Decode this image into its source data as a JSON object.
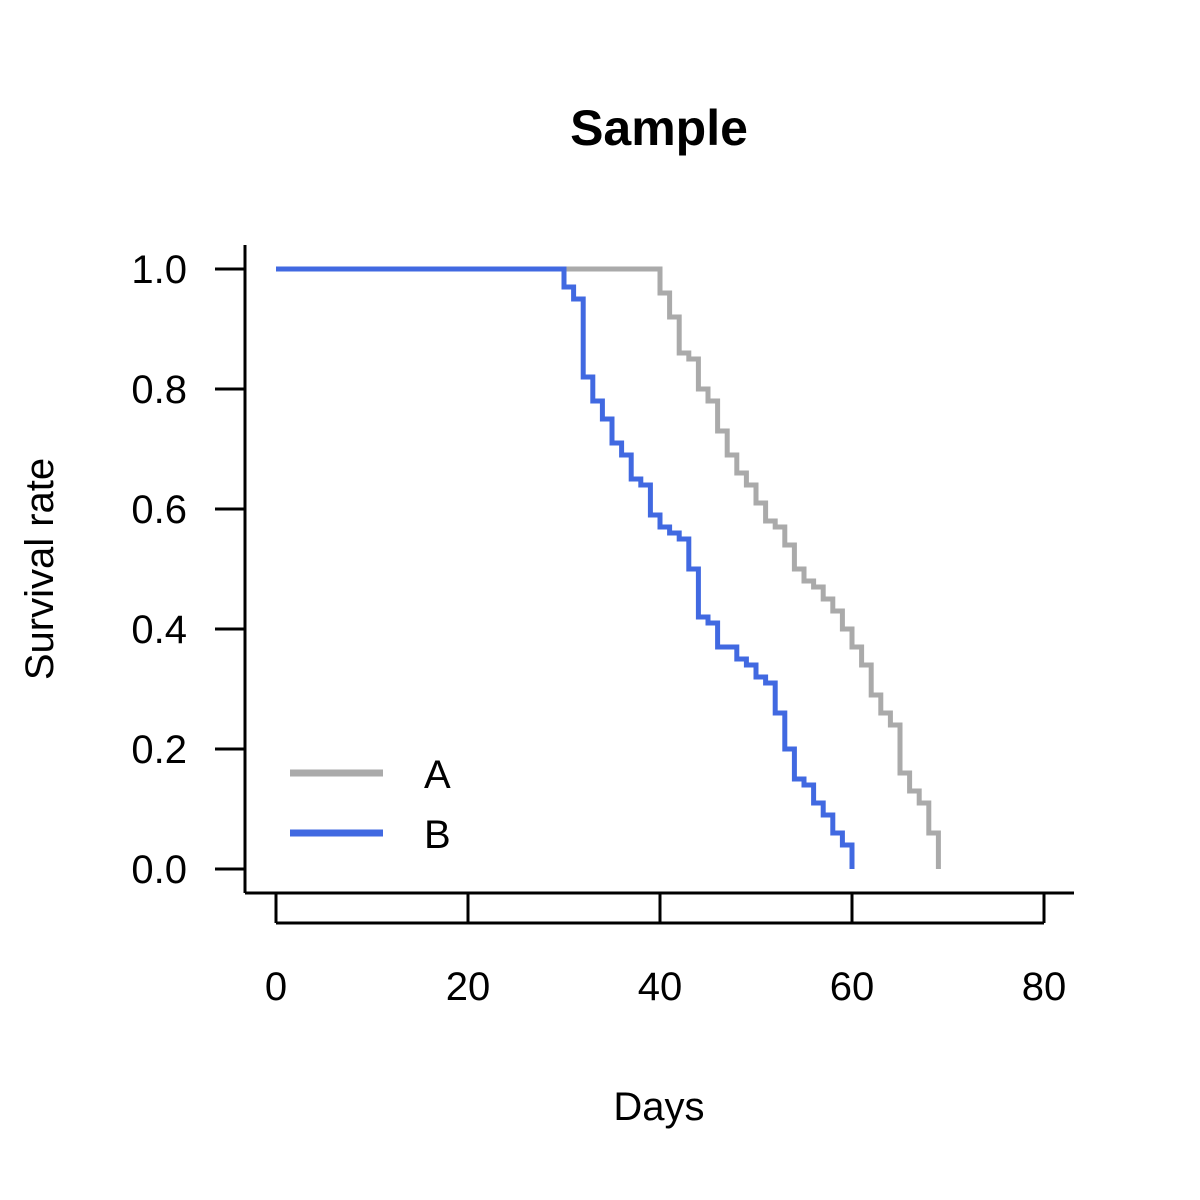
{
  "chart_data": {
    "type": "line",
    "title": "Sample",
    "xlabel": "Days",
    "ylabel": "Survival rate",
    "xlim": [
      0,
      80
    ],
    "ylim": [
      0,
      1
    ],
    "x_ticks": [
      0,
      20,
      40,
      60,
      80
    ],
    "y_ticks": [
      0.0,
      0.2,
      0.4,
      0.6,
      0.8,
      1.0
    ],
    "x_tick_labels": [
      "0",
      "20",
      "40",
      "60",
      "80"
    ],
    "y_tick_labels": [
      "0.0",
      "0.2",
      "0.4",
      "0.6",
      "0.8",
      "1.0"
    ],
    "grid": false,
    "legend_position": "bottom-left",
    "step": true,
    "series": [
      {
        "name": "A",
        "color": "#aaaaaa",
        "points": [
          [
            0,
            1.0
          ],
          [
            40,
            0.96
          ],
          [
            41,
            0.92
          ],
          [
            42,
            0.86
          ],
          [
            43,
            0.85
          ],
          [
            44,
            0.8
          ],
          [
            45,
            0.78
          ],
          [
            46,
            0.73
          ],
          [
            47,
            0.69
          ],
          [
            48,
            0.66
          ],
          [
            49,
            0.64
          ],
          [
            50,
            0.61
          ],
          [
            51,
            0.58
          ],
          [
            52,
            0.57
          ],
          [
            53,
            0.54
          ],
          [
            54,
            0.5
          ],
          [
            55,
            0.48
          ],
          [
            56,
            0.47
          ],
          [
            57,
            0.45
          ],
          [
            58,
            0.43
          ],
          [
            59,
            0.4
          ],
          [
            60,
            0.37
          ],
          [
            61,
            0.34
          ],
          [
            62,
            0.29
          ],
          [
            63,
            0.26
          ],
          [
            64,
            0.24
          ],
          [
            65,
            0.16
          ],
          [
            66,
            0.13
          ],
          [
            67,
            0.11
          ],
          [
            68,
            0.06
          ],
          [
            69,
            0.0
          ]
        ]
      },
      {
        "name": "B",
        "color": "#4169e1",
        "points": [
          [
            0,
            1.0
          ],
          [
            30,
            0.97
          ],
          [
            31,
            0.95
          ],
          [
            32,
            0.82
          ],
          [
            33,
            0.78
          ],
          [
            34,
            0.75
          ],
          [
            35,
            0.71
          ],
          [
            36,
            0.69
          ],
          [
            37,
            0.65
          ],
          [
            38,
            0.64
          ],
          [
            39,
            0.59
          ],
          [
            40,
            0.57
          ],
          [
            41,
            0.56
          ],
          [
            42,
            0.55
          ],
          [
            43,
            0.5
          ],
          [
            44,
            0.42
          ],
          [
            45,
            0.41
          ],
          [
            46,
            0.37
          ],
          [
            48,
            0.35
          ],
          [
            49,
            0.34
          ],
          [
            50,
            0.32
          ],
          [
            51,
            0.31
          ],
          [
            52,
            0.26
          ],
          [
            53,
            0.2
          ],
          [
            54,
            0.15
          ],
          [
            55,
            0.14
          ],
          [
            56,
            0.11
          ],
          [
            57,
            0.09
          ],
          [
            58,
            0.06
          ],
          [
            59,
            0.04
          ],
          [
            60,
            0.0
          ]
        ]
      }
    ]
  }
}
